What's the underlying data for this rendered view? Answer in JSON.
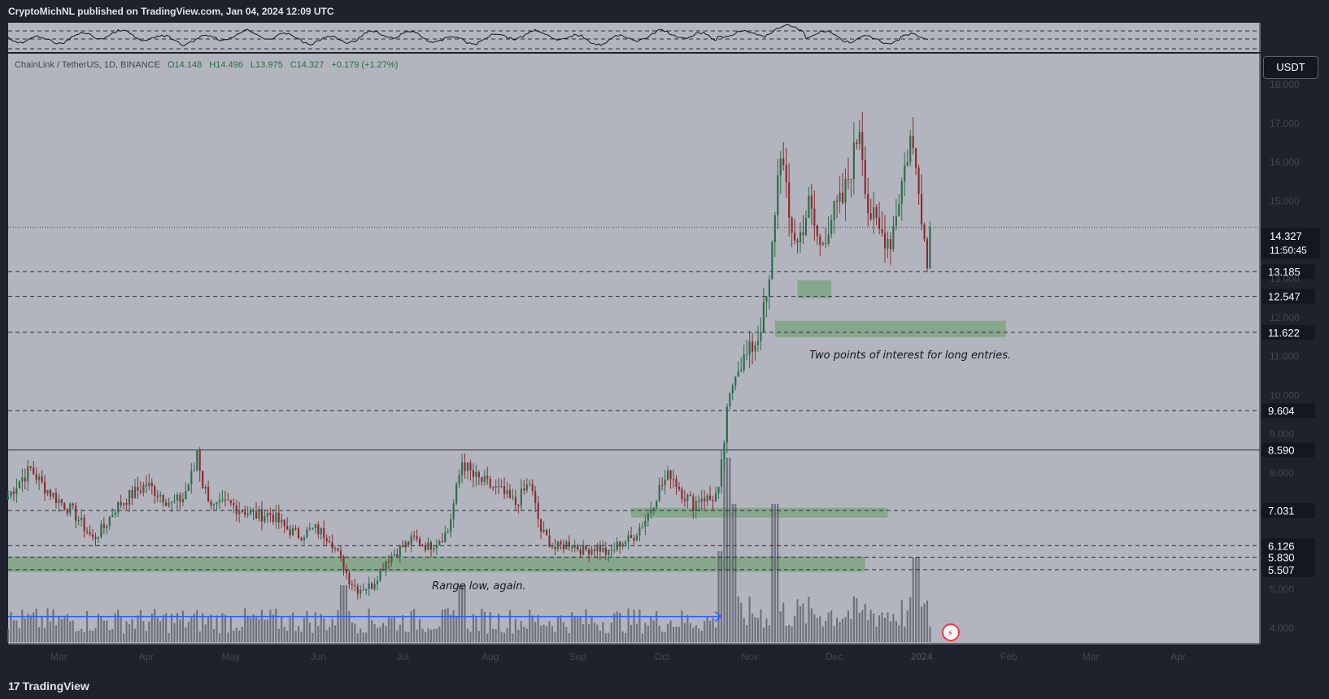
{
  "header": {
    "publisher": "CryptoMichNL published on TradingView.com, Jan 04, 2024 12:09 UTC"
  },
  "legend": {
    "symbol": "ChainLink / TetherUS, 1D, BINANCE",
    "open": "O14.148",
    "high": "H14.496",
    "low": "L13.975",
    "close": "C14.327",
    "change": "+0.179 (+1.27%)"
  },
  "currency_button": "USDT",
  "last_price": {
    "price": "14.327",
    "countdown": "11:50:45"
  },
  "footer": {
    "brand": "TradingView",
    "logo_mark": "17"
  },
  "colors": {
    "background": "#b2b5be",
    "frame": "#1e222d",
    "up_candle": "#2e6b4a",
    "down_candle": "#8b2a2d",
    "zone": "#7fa585",
    "arrow": "#2962ff"
  },
  "chart_data": {
    "type": "candlestick",
    "title": "ChainLink / TetherUS, 1D, BINANCE",
    "ylim": [
      3.6,
      18.8
    ],
    "x_axis": {
      "labels": [
        "Mar",
        "Apr",
        "May",
        "Jun",
        "Jul",
        "Aug",
        "Sep",
        "Oct",
        "Nov",
        "Dec",
        "2024",
        "Feb",
        "Mar",
        "Apr"
      ],
      "range": [
        "2023-02-11",
        "2024-04-30"
      ]
    },
    "y_ticks": [
      "18.000",
      "17.000",
      "16.000",
      "15.000",
      "13.000",
      "12.000",
      "11.000",
      "10.000",
      "9.000",
      "8.000",
      "5.000",
      "4.000"
    ],
    "key_prices": [
      {
        "label": "13.185",
        "value": 13.185,
        "style": "dashed"
      },
      {
        "label": "12.547",
        "value": 12.547,
        "style": "dashed"
      },
      {
        "label": "11.622",
        "value": 11.622,
        "style": "dashed"
      },
      {
        "label": "9.604",
        "value": 9.604,
        "style": "dashed"
      },
      {
        "label": "8.590",
        "value": 8.59,
        "style": "solid"
      },
      {
        "label": "7.031",
        "value": 7.031,
        "style": "dashed"
      },
      {
        "label": "6.126",
        "value": 6.126,
        "style": "dashed"
      },
      {
        "label": "5.830",
        "value": 5.83,
        "style": "dashed"
      },
      {
        "label": "5.507",
        "value": 5.507,
        "style": "dashed"
      }
    ],
    "current_price": 14.327,
    "zones": [
      {
        "name": "range-low",
        "from": "2023-02-11",
        "to": "2023-12-12",
        "low": 5.45,
        "high": 5.85
      },
      {
        "name": "october-breakout",
        "from": "2023-09-20",
        "to": "2023-12-20",
        "low": 6.85,
        "high": 7.1
      },
      {
        "name": "poi-lower",
        "from": "2023-11-10",
        "to": "2024-01-31",
        "low": 11.5,
        "high": 11.92
      },
      {
        "name": "poi-upper",
        "from": "2023-11-18",
        "to": "2023-11-30",
        "low": 12.5,
        "high": 12.96
      }
    ],
    "annotations": [
      {
        "text": "Two points of interest for long entries.",
        "date": "2023-12-28",
        "price": 10.95
      },
      {
        "text": "Range low, again.",
        "date": "2023-07-28",
        "price": 5.0
      }
    ],
    "arrow": {
      "from": "2023-02-11",
      "to": "2023-10-22",
      "price": 4.3
    },
    "closes": [
      [
        "2023-02-11",
        7.4
      ],
      [
        "2023-02-15",
        7.8
      ],
      [
        "2023-02-19",
        8.1
      ],
      [
        "2023-02-23",
        7.7
      ],
      [
        "2023-02-28",
        7.35
      ],
      [
        "2023-03-06",
        7.0
      ],
      [
        "2023-03-10",
        6.6
      ],
      [
        "2023-03-13",
        6.3
      ],
      [
        "2023-03-17",
        6.6
      ],
      [
        "2023-03-21",
        7.1
      ],
      [
        "2023-03-26",
        7.4
      ],
      [
        "2023-04-01",
        7.7
      ],
      [
        "2023-04-06",
        7.45
      ],
      [
        "2023-04-10",
        7.2
      ],
      [
        "2023-04-14",
        7.35
      ],
      [
        "2023-04-18",
        8.1
      ],
      [
        "2023-04-19",
        8.6
      ],
      [
        "2023-04-21",
        7.7
      ],
      [
        "2023-04-25",
        7.1
      ],
      [
        "2023-04-30",
        7.2
      ],
      [
        "2023-05-05",
        7.05
      ],
      [
        "2023-05-10",
        6.9
      ],
      [
        "2023-05-15",
        6.95
      ],
      [
        "2023-05-20",
        6.6
      ],
      [
        "2023-05-25",
        6.4
      ],
      [
        "2023-05-31",
        6.55
      ],
      [
        "2023-06-05",
        6.35
      ],
      [
        "2023-06-10",
        5.6
      ],
      [
        "2023-06-12",
        5.25
      ],
      [
        "2023-06-15",
        5.0
      ],
      [
        "2023-06-20",
        5.1
      ],
      [
        "2023-06-25",
        5.75
      ],
      [
        "2023-06-30",
        6.05
      ],
      [
        "2023-07-05",
        6.3
      ],
      [
        "2023-07-10",
        6.1
      ],
      [
        "2023-07-14",
        6.3
      ],
      [
        "2023-07-17",
        6.5
      ],
      [
        "2023-07-19",
        7.2
      ],
      [
        "2023-07-22",
        8.3
      ],
      [
        "2023-07-26",
        7.9
      ],
      [
        "2023-07-31",
        7.7
      ],
      [
        "2023-08-05",
        7.5
      ],
      [
        "2023-08-10",
        7.2
      ],
      [
        "2023-08-15",
        7.75
      ],
      [
        "2023-08-19",
        6.5
      ],
      [
        "2023-08-24",
        6.05
      ],
      [
        "2023-08-29",
        6.2
      ],
      [
        "2023-09-03",
        6.0
      ],
      [
        "2023-09-08",
        6.1
      ],
      [
        "2023-09-12",
        5.9
      ],
      [
        "2023-09-16",
        6.2
      ],
      [
        "2023-09-20",
        6.3
      ],
      [
        "2023-09-25",
        6.8
      ],
      [
        "2023-09-30",
        7.6
      ],
      [
        "2023-10-04",
        8.0
      ],
      [
        "2023-10-08",
        7.5
      ],
      [
        "2023-10-12",
        7.2
      ],
      [
        "2023-10-15",
        7.4
      ],
      [
        "2023-10-18",
        7.3
      ],
      [
        "2023-10-21",
        7.5
      ],
      [
        "2023-10-24",
        9.5
      ],
      [
        "2023-10-27",
        10.7
      ],
      [
        "2023-10-31",
        11.0
      ],
      [
        "2023-11-04",
        11.5
      ],
      [
        "2023-11-08",
        12.8
      ],
      [
        "2023-11-10",
        14.8
      ],
      [
        "2023-11-12",
        16.4
      ],
      [
        "2023-11-15",
        14.5
      ],
      [
        "2023-11-18",
        13.9
      ],
      [
        "2023-11-22",
        14.9
      ],
      [
        "2023-11-26",
        13.8
      ],
      [
        "2023-11-30",
        14.6
      ],
      [
        "2023-12-04",
        15.0
      ],
      [
        "2023-12-08",
        16.2
      ],
      [
        "2023-12-10",
        17.0
      ],
      [
        "2023-12-13",
        14.8
      ],
      [
        "2023-12-17",
        14.2
      ],
      [
        "2023-12-21",
        14.0
      ],
      [
        "2023-12-25",
        15.5
      ],
      [
        "2023-12-28",
        16.6
      ],
      [
        "2023-12-31",
        15.5
      ],
      [
        "2024-01-03",
        13.3
      ],
      [
        "2024-01-04",
        14.327
      ]
    ],
    "volume_peaks": [
      [
        "2023-06-10",
        1.0
      ],
      [
        "2023-07-22",
        1.0
      ],
      [
        "2023-10-22",
        1.6
      ],
      [
        "2023-10-24",
        2.4
      ],
      [
        "2023-10-26",
        1.8
      ],
      [
        "2023-11-10",
        1.8
      ],
      [
        "2023-12-30",
        1.1
      ]
    ]
  }
}
